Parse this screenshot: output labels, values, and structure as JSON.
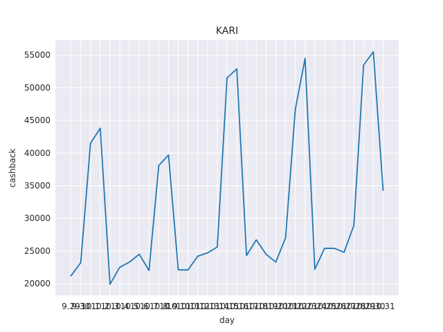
{
  "chart_data": {
    "type": "line",
    "title": "KARI",
    "xlabel": "day",
    "ylabel": "cashback",
    "categories": [
      "9.29",
      "9.30",
      "10.1",
      "10.2",
      "10.3",
      "10.4",
      "10.5",
      "10.6",
      "10.7",
      "10.8",
      "10.9",
      "10.10",
      "10.11",
      "10.12",
      "10.13",
      "10.14",
      "10.15",
      "10.16",
      "10.17",
      "10.18",
      "10.19",
      "10.20",
      "10.21",
      "10.22",
      "10.23",
      "10.24",
      "10.25",
      "10.26",
      "10.27",
      "10.28",
      "10.29",
      "10.30",
      "10.31"
    ],
    "series": [
      {
        "values": [
          21200,
          23200,
          41500,
          43800,
          19900,
          22500,
          23300,
          24500,
          22000,
          38100,
          39700,
          22100,
          22100,
          24200,
          24700,
          25600,
          51500,
          52900,
          24300,
          26700,
          24500,
          23300,
          27000,
          46700,
          54500,
          22200,
          25400,
          25400,
          24800,
          28900,
          53500,
          55500,
          34300
        ]
      }
    ],
    "y_ticks": [
      20000,
      25000,
      30000,
      35000,
      40000,
      45000,
      50000,
      55000
    ],
    "ylim": [
      18200,
      57300
    ],
    "grid": true,
    "colors": {
      "line": "#1f77b4",
      "plot_background": "#eaeaf2",
      "grid": "#ffffff",
      "text": "#262626"
    }
  }
}
